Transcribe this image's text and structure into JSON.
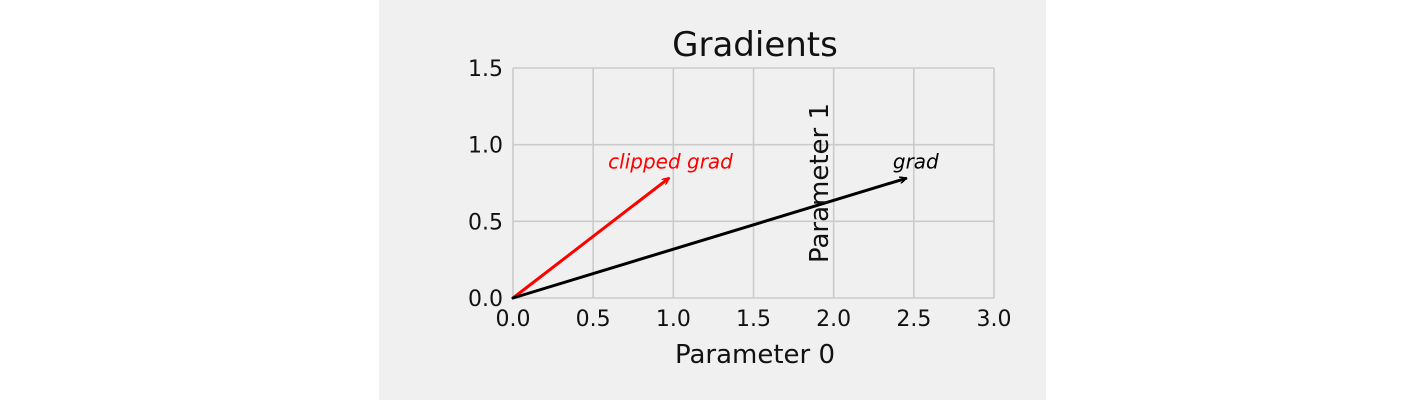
{
  "chart_data": {
    "type": "line",
    "title": "Gradients",
    "xlabel": "Parameter 0",
    "ylabel": "Parameter 1",
    "xlim": [
      0,
      3
    ],
    "ylim": [
      0,
      1.5
    ],
    "xticks": [
      "0.0",
      "0.5",
      "1.0",
      "1.5",
      "2.0",
      "2.5",
      "3.0"
    ],
    "yticks": [
      "0.0",
      "0.5",
      "1.0",
      "1.5"
    ],
    "grid": true,
    "series": [
      {
        "name": "clipped grad",
        "start": [
          0,
          0
        ],
        "end": [
          0.97,
          0.78
        ],
        "color": "#ff0000"
      },
      {
        "name": "grad",
        "start": [
          0,
          0
        ],
        "end": [
          2.45,
          0.78
        ],
        "color": "#000000"
      }
    ]
  }
}
